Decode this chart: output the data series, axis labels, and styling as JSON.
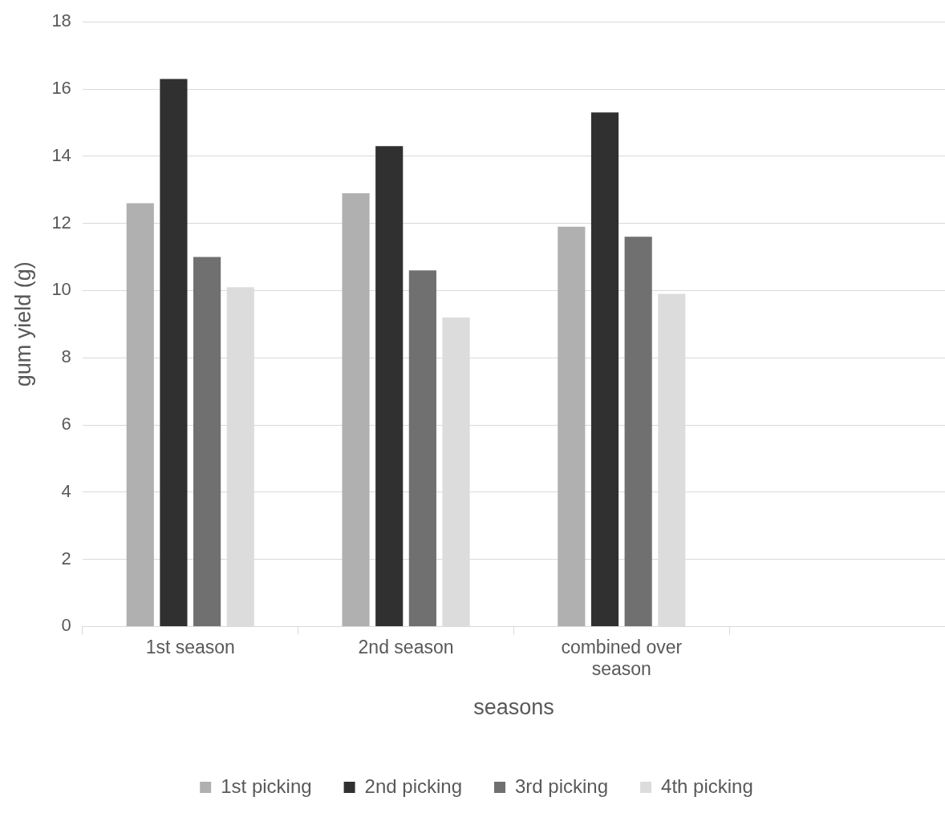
{
  "chart_data": {
    "type": "bar",
    "categories": [
      "1st season",
      "2nd season",
      "combined over season",
      null
    ],
    "series": [
      {
        "name": "1st picking",
        "color": "#b0b0b0",
        "values": [
          12.6,
          12.9,
          11.9,
          null
        ]
      },
      {
        "name": "2nd picking",
        "color": "#303030",
        "values": [
          16.3,
          14.3,
          15.3,
          null
        ]
      },
      {
        "name": "3rd picking",
        "color": "#707070",
        "values": [
          11.0,
          10.6,
          11.6,
          null
        ]
      },
      {
        "name": "4th picking",
        "color": "#dcdcdc",
        "values": [
          10.1,
          9.2,
          9.9,
          null
        ]
      }
    ],
    "xlabel": "seasons",
    "ylabel": "gum yield (g)",
    "ylim": [
      0,
      18
    ],
    "yticks": [
      0,
      2,
      4,
      6,
      8,
      10,
      12,
      14,
      16,
      18
    ],
    "grid": "y",
    "legend": "bottom"
  }
}
